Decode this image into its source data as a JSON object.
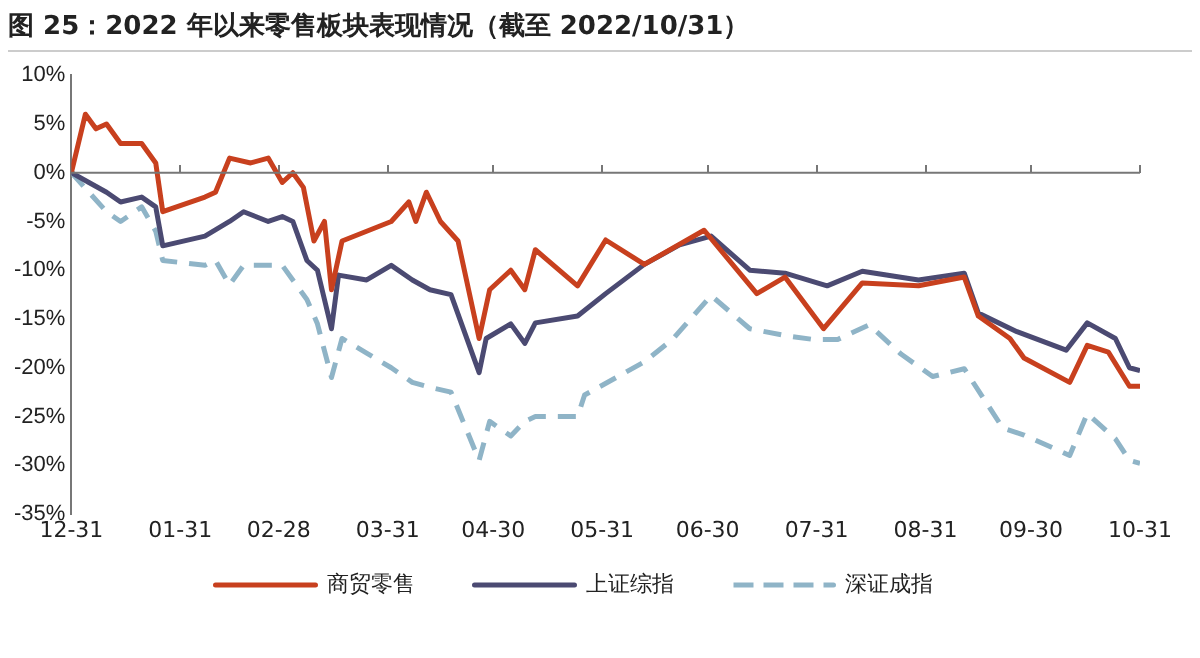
{
  "chart_data": {
    "type": "line",
    "title": "图 25：2022 年以来零售板块表现情况（截至 2022/10/31）",
    "xlim": [
      "2021-12-31",
      "2022-10-31"
    ],
    "xticks": [
      {
        "value": "2021-12-31",
        "label": "12-31"
      },
      {
        "value": "2022-01-31",
        "label": "01-31"
      },
      {
        "value": "2022-02-28",
        "label": "02-28"
      },
      {
        "value": "2022-03-31",
        "label": "03-31"
      },
      {
        "value": "2022-04-30",
        "label": "04-30"
      },
      {
        "value": "2022-05-31",
        "label": "05-31"
      },
      {
        "value": "2022-06-30",
        "label": "06-30"
      },
      {
        "value": "2022-07-31",
        "label": "07-31"
      },
      {
        "value": "2022-08-31",
        "label": "08-31"
      },
      {
        "value": "2022-09-30",
        "label": "09-30"
      },
      {
        "value": "2022-10-31",
        "label": "10-31"
      }
    ],
    "ylim": [
      -35,
      10
    ],
    "yticks": [
      {
        "value": 10,
        "label": "10%"
      },
      {
        "value": 5,
        "label": "5%"
      },
      {
        "value": 0,
        "label": "0%"
      },
      {
        "value": -5,
        "label": "-5%"
      },
      {
        "value": -10,
        "label": "-10%"
      },
      {
        "value": -15,
        "label": "-15%"
      },
      {
        "value": -20,
        "label": "-20%"
      },
      {
        "value": -25,
        "label": "-25%"
      },
      {
        "value": -30,
        "label": "-30%"
      },
      {
        "value": -35,
        "label": "-35%"
      }
    ],
    "grid": false,
    "legend": "bottom",
    "marker": "none",
    "ref_lines": [
      {
        "axis": "y",
        "value": 0,
        "color": "#777777"
      }
    ],
    "series": [
      {
        "name": "商贸零售",
        "color": "#c8401e",
        "line_style": "solid",
        "x": [
          "2021-12-31",
          "2022-01-04",
          "2022-01-07",
          "2022-01-10",
          "2022-01-14",
          "2022-01-20",
          "2022-01-24",
          "2022-01-26",
          "2022-02-07",
          "2022-02-10",
          "2022-02-14",
          "2022-02-20",
          "2022-02-25",
          "2022-03-01",
          "2022-03-04",
          "2022-03-07",
          "2022-03-10",
          "2022-03-13",
          "2022-03-15",
          "2022-03-18",
          "2022-03-25",
          "2022-04-01",
          "2022-04-06",
          "2022-04-08",
          "2022-04-11",
          "2022-04-15",
          "2022-04-20",
          "2022-04-26",
          "2022-04-29",
          "2022-05-05",
          "2022-05-09",
          "2022-05-12",
          "2022-05-24",
          "2022-06-01",
          "2022-06-12",
          "2022-06-29",
          "2022-07-14",
          "2022-07-22",
          "2022-08-02",
          "2022-08-13",
          "2022-08-29",
          "2022-09-11",
          "2022-09-15",
          "2022-09-24",
          "2022-09-28",
          "2022-10-11",
          "2022-10-16",
          "2022-10-22",
          "2022-10-28",
          "2022-10-31"
        ],
        "values": [
          0,
          6,
          4.5,
          5,
          3,
          3,
          1,
          -4,
          -2.5,
          -2,
          1.5,
          1,
          1.5,
          -1,
          0,
          -1.5,
          -7,
          -5,
          -12,
          -7,
          -6,
          -5,
          -3,
          -5,
          -2,
          -5,
          -7,
          -17,
          -12,
          -10,
          -12,
          -7.9,
          -11.6,
          -6.9,
          -9.4,
          -5.9,
          -12.4,
          -10.7,
          -16,
          -11.3,
          -11.6,
          -10.7,
          -14.7,
          -17,
          -19,
          -21.5,
          -17.7,
          -18.4,
          -21.9,
          -21.9
        ]
      },
      {
        "name": "上证综指",
        "color": "#4b4a72",
        "line_style": "solid",
        "x": [
          "2021-12-31",
          "2022-01-05",
          "2022-01-10",
          "2022-01-14",
          "2022-01-20",
          "2022-01-24",
          "2022-01-26",
          "2022-02-07",
          "2022-02-14",
          "2022-02-18",
          "2022-02-25",
          "2022-03-01",
          "2022-03-04",
          "2022-03-08",
          "2022-03-11",
          "2022-03-15",
          "2022-03-17",
          "2022-03-25",
          "2022-04-01",
          "2022-04-07",
          "2022-04-12",
          "2022-04-18",
          "2022-04-26",
          "2022-04-28",
          "2022-05-05",
          "2022-05-09",
          "2022-05-12",
          "2022-05-24",
          "2022-06-01",
          "2022-06-12",
          "2022-06-22",
          "2022-07-01",
          "2022-07-12",
          "2022-07-22",
          "2022-08-03",
          "2022-08-13",
          "2022-08-29",
          "2022-09-11",
          "2022-09-15",
          "2022-09-26",
          "2022-10-10",
          "2022-10-16",
          "2022-10-24",
          "2022-10-28",
          "2022-10-31"
        ],
        "values": [
          0,
          -1,
          -2,
          -3,
          -2.5,
          -3.5,
          -7.5,
          -6.5,
          -5,
          -4,
          -5,
          -4.5,
          -5,
          -9,
          -10,
          -16,
          -10.5,
          -11,
          -9.5,
          -11,
          -12,
          -12.5,
          -20.5,
          -17,
          -15.5,
          -17.5,
          -15.4,
          -14.7,
          -12.4,
          -9.4,
          -7.4,
          -6.5,
          -10,
          -10.3,
          -11.6,
          -10.1,
          -11,
          -10.3,
          -14.4,
          -16.3,
          -18.2,
          -15.4,
          -17,
          -20,
          -20.3
        ]
      },
      {
        "name": "深证成指",
        "color": "#8fb4c7",
        "line_style": "dashed",
        "x": [
          "2021-12-31",
          "2022-01-05",
          "2022-01-10",
          "2022-01-14",
          "2022-01-20",
          "2022-01-24",
          "2022-01-26",
          "2022-02-07",
          "2022-02-10",
          "2022-02-14",
          "2022-02-18",
          "2022-02-25",
          "2022-03-01",
          "2022-03-08",
          "2022-03-11",
          "2022-03-15",
          "2022-03-18",
          "2022-03-25",
          "2022-04-01",
          "2022-04-07",
          "2022-04-12",
          "2022-04-18",
          "2022-04-26",
          "2022-04-29",
          "2022-05-05",
          "2022-05-09",
          "2022-05-12",
          "2022-05-24",
          "2022-05-26",
          "2022-06-12",
          "2022-06-20",
          "2022-07-01",
          "2022-07-12",
          "2022-07-22",
          "2022-07-30",
          "2022-08-06",
          "2022-08-15",
          "2022-08-24",
          "2022-09-02",
          "2022-09-11",
          "2022-09-22",
          "2022-09-28",
          "2022-10-11",
          "2022-10-16",
          "2022-10-24",
          "2022-10-28",
          "2022-10-31"
        ],
        "values": [
          0,
          -2,
          -4,
          -5,
          -3.5,
          -6,
          -9,
          -9.5,
          -9,
          -11.5,
          -9.5,
          -9.5,
          -9.5,
          -13,
          -15.5,
          -21,
          -17,
          -18.5,
          -20,
          -21.5,
          -22,
          -22.5,
          -29.5,
          -25.5,
          -27,
          -25.5,
          -25,
          -25,
          -22.8,
          -19.4,
          -17.1,
          -12.6,
          -16,
          -16.7,
          -17.1,
          -17.1,
          -15.6,
          -18.6,
          -20.9,
          -20.1,
          -26.2,
          -26.9,
          -29,
          -24.7,
          -27.3,
          -29.5,
          -29.8
        ]
      }
    ]
  }
}
